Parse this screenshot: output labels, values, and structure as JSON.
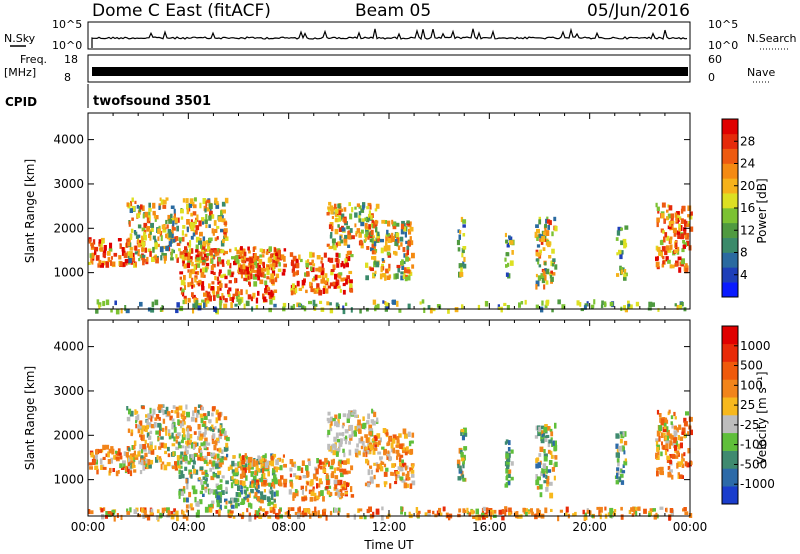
{
  "header": {
    "station": "Dome C East (fitACF)",
    "beam": "Beam 05",
    "date": "05/Jun/2016"
  },
  "status_panels": {
    "nsky_label": "N.Sky",
    "nsearch_label": "N.Search",
    "freq_label_1": "Freq.",
    "freq_label_2": "[MHz]",
    "nave_label": "Nave",
    "cpid_label": "CPID",
    "cpid_value": "twofsound 3501",
    "noise_left_ticks": [
      "10^5",
      "10^0"
    ],
    "noise_right_ticks": [
      "10^5",
      "10^0"
    ],
    "freq_left_ticks": [
      "18",
      "8"
    ],
    "freq_right_ticks": [
      "60",
      "0"
    ]
  },
  "chart_data": [
    {
      "type": "heatmap",
      "title": "",
      "xlabel": "Time UT",
      "ylabel": "Slant Range [km]",
      "xticks": [
        "00:00",
        "04:00",
        "08:00",
        "12:00",
        "16:00",
        "20:00",
        "00:00"
      ],
      "xlim_hours": [
        0,
        24
      ],
      "yticks": [
        1000,
        2000,
        3000,
        4000
      ],
      "ylim": [
        180,
        4600
      ],
      "colorbar": {
        "label": "Power [dB]",
        "ticks": [
          4,
          8,
          12,
          16,
          20,
          24,
          28
        ],
        "colors": [
          "#0a1bff",
          "#1e3fb8",
          "#2a6aa0",
          "#3a8a6a",
          "#4f9a40",
          "#7cc233",
          "#dde022",
          "#f6b21a",
          "#f48a12",
          "#ee5a10",
          "#e52a0a",
          "#e00000"
        ]
      },
      "echo_regions": [
        {
          "t": [
            0.0,
            2.3
          ],
          "r": [
            1200,
            1800
          ],
          "level": "high"
        },
        {
          "t": [
            1.5,
            5.5
          ],
          "r": [
            1300,
            2700
          ],
          "level": "mid"
        },
        {
          "t": [
            3.6,
            7.5
          ],
          "r": [
            400,
            1600
          ],
          "level": "high"
        },
        {
          "t": [
            6.0,
            7.8
          ],
          "r": [
            900,
            1600
          ],
          "level": "high"
        },
        {
          "t": [
            8.0,
            10.5
          ],
          "r": [
            600,
            1500
          ],
          "level": "high"
        },
        {
          "t": [
            9.5,
            11.5
          ],
          "r": [
            1600,
            2600
          ],
          "level": "mid"
        },
        {
          "t": [
            11.0,
            12.9
          ],
          "r": [
            900,
            2200
          ],
          "level": "mid"
        },
        {
          "t": [
            14.7,
            15.0
          ],
          "r": [
            1000,
            2300
          ],
          "level": "low"
        },
        {
          "t": [
            16.6,
            16.9
          ],
          "r": [
            900,
            2000
          ],
          "level": "low"
        },
        {
          "t": [
            17.8,
            18.6
          ],
          "r": [
            700,
            2300
          ],
          "level": "mid"
        },
        {
          "t": [
            21.0,
            21.4
          ],
          "r": [
            900,
            2100
          ],
          "level": "low"
        },
        {
          "t": [
            22.6,
            24.0
          ],
          "r": [
            1100,
            2600
          ],
          "level": "high"
        },
        {
          "t": [
            0.0,
            24.0
          ],
          "r": [
            180,
            400
          ],
          "level": "low"
        }
      ]
    },
    {
      "type": "heatmap",
      "title": "",
      "xlabel": "Time UT",
      "ylabel": "Slant Range [km]",
      "xticks": [
        "00:00",
        "04:00",
        "08:00",
        "12:00",
        "16:00",
        "20:00",
        "00:00"
      ],
      "xlim_hours": [
        0,
        24
      ],
      "yticks": [
        1000,
        2000,
        3000,
        4000
      ],
      "ylim": [
        180,
        4600
      ],
      "colorbar": {
        "label": "Velocity [m s⁻¹]",
        "ticks": [
          "1000",
          "500",
          "100",
          "25",
          "-25",
          "-100",
          "-500",
          "-1000"
        ],
        "colors": [
          "#1a3dcc",
          "#2c6aa8",
          "#3f8a70",
          "#5fbf3a",
          "#bdbdbd",
          "#f7b81c",
          "#f2841a",
          "#ef5a0c",
          "#e82a08",
          "#e00000"
        ]
      },
      "echo_regions": [
        {
          "t": [
            0.0,
            2.3
          ],
          "r": [
            1200,
            1800
          ],
          "level": "orange"
        },
        {
          "t": [
            1.5,
            5.5
          ],
          "r": [
            1300,
            2700
          ],
          "level": "mixed"
        },
        {
          "t": [
            3.6,
            7.5
          ],
          "r": [
            400,
            1600
          ],
          "level": "green"
        },
        {
          "t": [
            6.0,
            7.8
          ],
          "r": [
            900,
            1600
          ],
          "level": "orange"
        },
        {
          "t": [
            8.0,
            10.5
          ],
          "r": [
            600,
            1500
          ],
          "level": "orange"
        },
        {
          "t": [
            9.5,
            11.5
          ],
          "r": [
            1600,
            2600
          ],
          "level": "gray"
        },
        {
          "t": [
            11.0,
            12.9
          ],
          "r": [
            900,
            2200
          ],
          "level": "orange"
        },
        {
          "t": [
            14.7,
            15.0
          ],
          "r": [
            1000,
            2300
          ],
          "level": "green"
        },
        {
          "t": [
            16.6,
            16.9
          ],
          "r": [
            900,
            2000
          ],
          "level": "green"
        },
        {
          "t": [
            17.8,
            18.6
          ],
          "r": [
            700,
            2300
          ],
          "level": "green"
        },
        {
          "t": [
            21.0,
            21.4
          ],
          "r": [
            900,
            2100
          ],
          "level": "green"
        },
        {
          "t": [
            22.6,
            24.0
          ],
          "r": [
            1100,
            2600
          ],
          "level": "orange"
        },
        {
          "t": [
            0.0,
            24.0
          ],
          "r": [
            180,
            400
          ],
          "level": "orange"
        }
      ]
    }
  ]
}
